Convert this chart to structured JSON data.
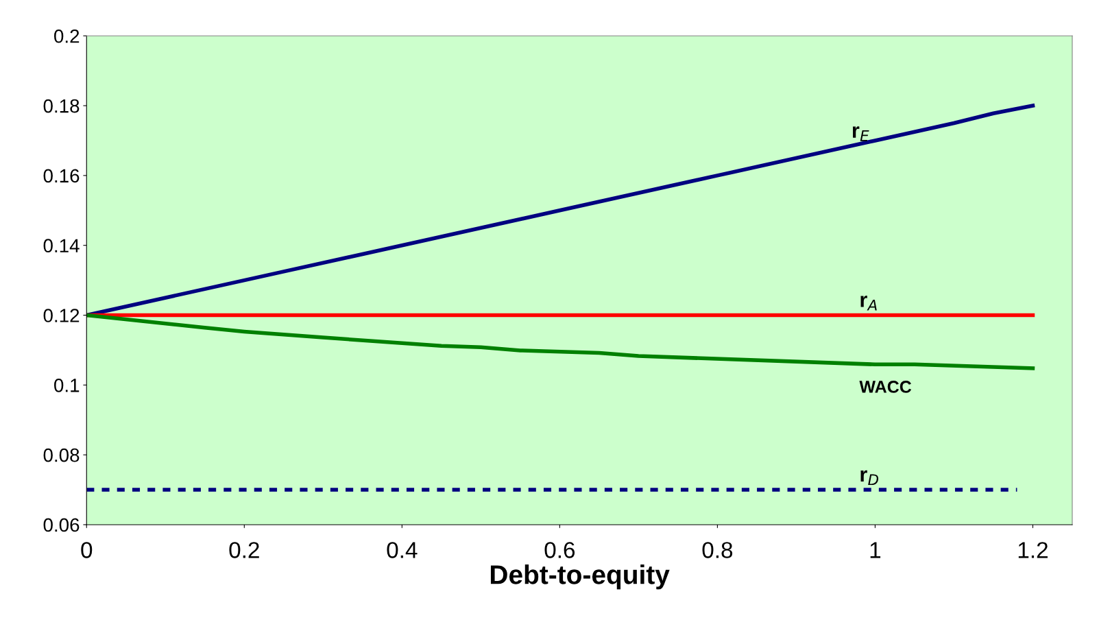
{
  "chart_data": {
    "type": "line",
    "xlabel": "Debt-to-equity",
    "xlim": [
      0,
      1.25
    ],
    "xticks": [
      0,
      0.2,
      0.4,
      0.6,
      0.8,
      1,
      1.2
    ],
    "ylim": [
      0.06,
      0.2
    ],
    "yticks": [
      0.06,
      0.08,
      0.1,
      0.12,
      0.14,
      0.16,
      0.18,
      0.2
    ],
    "grid": false,
    "legend": false,
    "marker": "none",
    "series": [
      {
        "name": "r$_{E}$",
        "color": "#000080",
        "line_style": "solid",
        "x": [
          0,
          0.2,
          0.25,
          0.4,
          0.6,
          0.8,
          1,
          1.1,
          1.15,
          1.2
        ],
        "values": [
          0.12,
          0.13,
          0.1325,
          0.14,
          0.15,
          0.16,
          0.17,
          0.175,
          0.1778,
          0.18
        ]
      },
      {
        "name": "r$_{A}$",
        "color": "#ff0000",
        "line_style": "solid",
        "x": [
          0,
          1.2
        ],
        "values": [
          0.12,
          0.12
        ]
      },
      {
        "name": "WACC",
        "color": "#008000",
        "line_style": "solid",
        "x": [
          0,
          0.15,
          0.2,
          0.3,
          0.45,
          0.5,
          0.55,
          0.65,
          0.7,
          1,
          1.05,
          1.2
        ],
        "values": [
          0.12,
          0.1164,
          0.1153,
          0.1136,
          0.1112,
          0.1108,
          0.1099,
          0.1092,
          0.1083,
          0.1059,
          0.1059,
          0.1048
        ]
      },
      {
        "name": "r$_{D}$",
        "color": "#000080",
        "line_style": "dashed",
        "x": [
          0,
          1.18
        ],
        "values": [
          0.07,
          0.07
        ]
      }
    ]
  }
}
